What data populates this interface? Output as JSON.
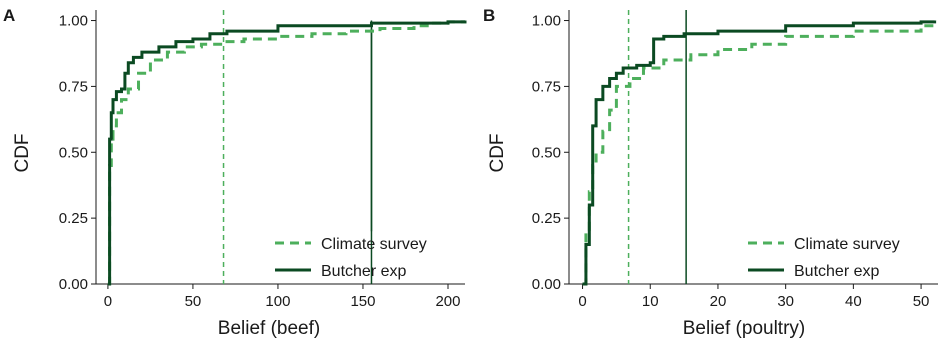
{
  "colors": {
    "climate_survey": "#4daf5c",
    "butcher_exp": "#0b4a22",
    "axis": "#1a1a1a"
  },
  "chart_data": [
    {
      "type": "line",
      "panel_label": "A",
      "xlabel": "Belief (beef)",
      "ylabel": "CDF",
      "xlim": [
        -7,
        210
      ],
      "ylim": [
        0,
        1.04
      ],
      "xticks": [
        0,
        50,
        100,
        150,
        200
      ],
      "yticks": [
        "0.00",
        "0.25",
        "0.50",
        "0.75",
        "1.00"
      ],
      "grid": false,
      "legend_position": "bottom-right",
      "reference_lines": [
        {
          "series": "Climate survey",
          "x": 68,
          "style": "dashed"
        },
        {
          "series": "Butcher exp",
          "x": 155,
          "style": "solid",
          "y_top": 1.0
        },
        {
          "series": "Butcher exp",
          "x": 155,
          "style": "solid",
          "y_bottom": 0.2,
          "y_top": 0.97
        }
      ],
      "series": [
        {
          "name": "Climate survey",
          "style": "dashed",
          "x": [
            0,
            1,
            1,
            2,
            3,
            5,
            8,
            12,
            18,
            25,
            35,
            45,
            55,
            68,
            80,
            100,
            120,
            140,
            160,
            180,
            190,
            200,
            210
          ],
          "y": [
            0,
            0.25,
            0.45,
            0.55,
            0.6,
            0.65,
            0.7,
            0.74,
            0.8,
            0.85,
            0.88,
            0.9,
            0.91,
            0.92,
            0.93,
            0.94,
            0.95,
            0.96,
            0.97,
            0.98,
            0.99,
            0.995,
            1.0
          ]
        },
        {
          "name": "Butcher exp",
          "style": "solid",
          "x": [
            0,
            1,
            1,
            2,
            3,
            5,
            8,
            10,
            12,
            15,
            20,
            30,
            40,
            50,
            60,
            70,
            100,
            120,
            150,
            155,
            175,
            200,
            210
          ],
          "y": [
            0,
            0.3,
            0.55,
            0.65,
            0.7,
            0.73,
            0.74,
            0.8,
            0.84,
            0.86,
            0.88,
            0.9,
            0.92,
            0.93,
            0.95,
            0.96,
            0.98,
            0.98,
            0.98,
            0.99,
            0.99,
            0.995,
            1.0
          ]
        }
      ]
    },
    {
      "type": "line",
      "panel_label": "B",
      "xlabel": "Belief (poultry)",
      "ylabel": "CDF",
      "xlim": [
        -2,
        52.5
      ],
      "ylim": [
        0,
        1.04
      ],
      "xticks": [
        0,
        10,
        20,
        30,
        40,
        50
      ],
      "yticks": [
        "0.00",
        "0.25",
        "0.50",
        "0.75",
        "1.00"
      ],
      "grid": false,
      "legend_position": "bottom-right",
      "reference_lines": [
        {
          "series": "Climate survey",
          "x": 6.8,
          "style": "dashed"
        },
        {
          "series": "Butcher exp",
          "x": 15.3,
          "style": "solid"
        }
      ],
      "series": [
        {
          "name": "Climate survey",
          "style": "dashed",
          "x": [
            0,
            0.5,
            1,
            1.5,
            2,
            3,
            4,
            5,
            7,
            9,
            12,
            16,
            20,
            25,
            30,
            40,
            50,
            52
          ],
          "y": [
            0,
            0.2,
            0.35,
            0.45,
            0.5,
            0.58,
            0.66,
            0.75,
            0.78,
            0.82,
            0.85,
            0.87,
            0.89,
            0.91,
            0.94,
            0.96,
            0.98,
            1.0
          ]
        },
        {
          "name": "Butcher exp",
          "style": "solid",
          "x": [
            0,
            0.5,
            1,
            1.5,
            2,
            3,
            4,
            5,
            6,
            8,
            10,
            10.5,
            12,
            15,
            20,
            30,
            40,
            50,
            52
          ],
          "y": [
            0,
            0.15,
            0.3,
            0.6,
            0.7,
            0.75,
            0.78,
            0.8,
            0.82,
            0.83,
            0.84,
            0.93,
            0.94,
            0.95,
            0.96,
            0.98,
            0.99,
            0.995,
            1.0
          ]
        }
      ]
    }
  ]
}
